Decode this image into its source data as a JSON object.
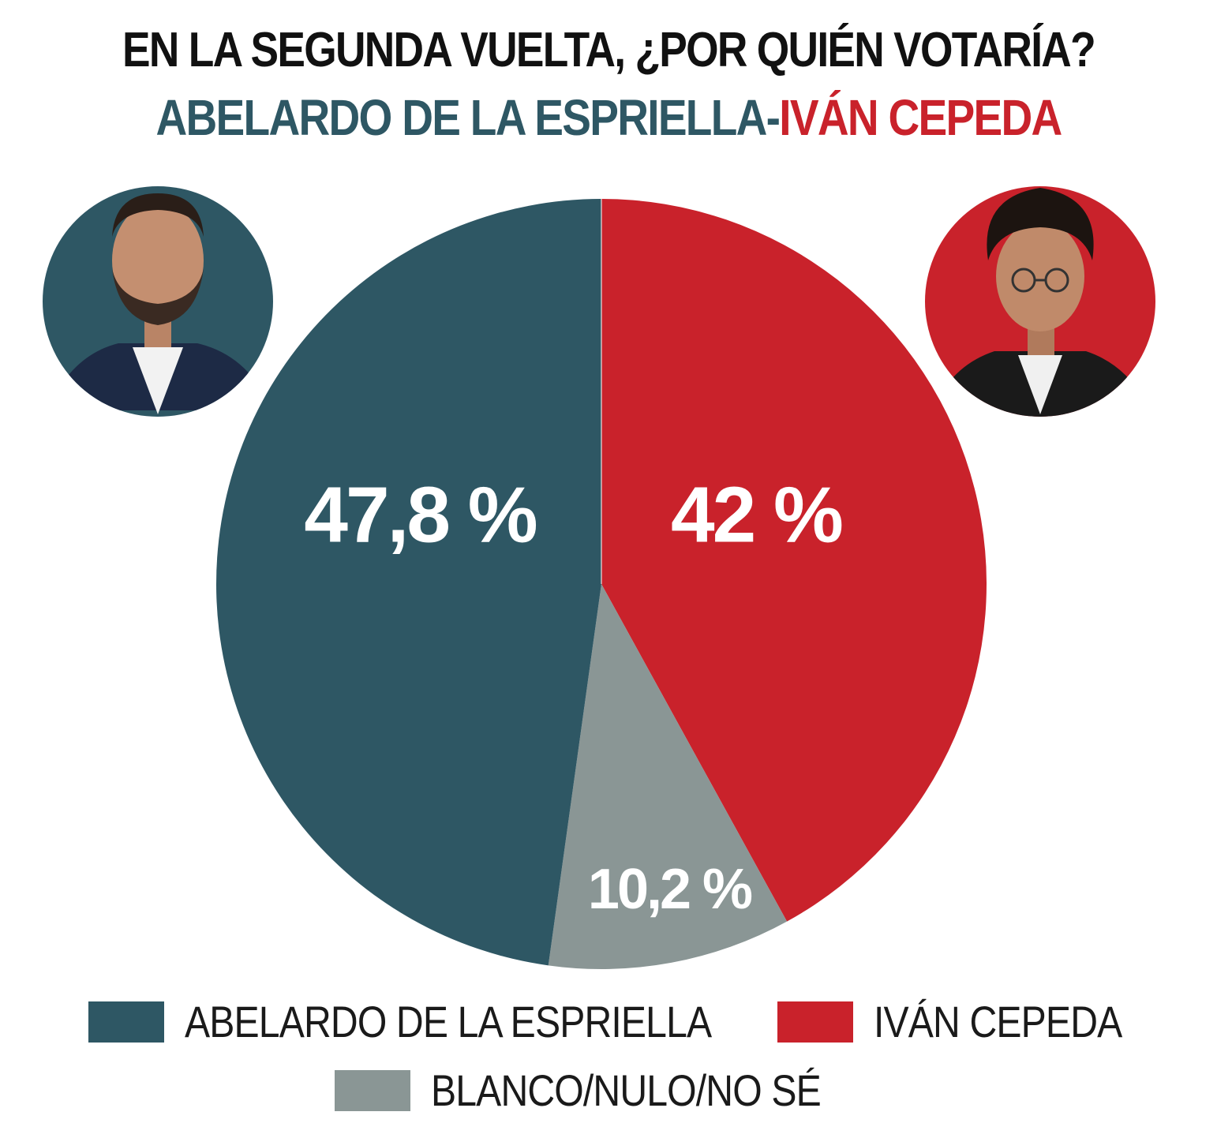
{
  "title": "EN LA SEGUNDA VUELTA, ¿POR QUIÉN VOTARÍA?",
  "subtitle": {
    "candidate_a": "ABELARDO DE LA ESPRIELLA",
    "separator": "-",
    "candidate_b": "IVÁN CEPEDA"
  },
  "colors": {
    "abelardo": "#2e5764",
    "cepeda": "#c9222b",
    "blanco": "#8a9695"
  },
  "portraits": {
    "left": "portrait-abelardo-de-la-espriella",
    "right": "portrait-ivan-cepeda"
  },
  "chart_data": {
    "type": "pie",
    "title": "EN LA SEGUNDA VUELTA, ¿POR QUIÉN VOTARÍA?",
    "start": "12 o'clock",
    "slices": [
      {
        "label": "IVÁN CEPEDA",
        "value": 42,
        "display": "42 %",
        "color": "#c9222b"
      },
      {
        "label": "BLANCO/NULO/NO SÉ",
        "value": 10.2,
        "display": "10,2 %",
        "color": "#8a9695"
      },
      {
        "label": "ABELARDO DE LA ESPRIELLA",
        "value": 47.8,
        "display": "47,8 %",
        "color": "#2e5764"
      }
    ],
    "legend_placement": "bottom"
  },
  "legend": [
    {
      "label": "ABELARDO DE LA ESPRIELLA",
      "color": "#2e5764"
    },
    {
      "label": "IVÁN CEPEDA",
      "color": "#c9222b"
    },
    {
      "label": "BLANCO/NULO/NO SÉ",
      "color": "#8a9695"
    }
  ]
}
